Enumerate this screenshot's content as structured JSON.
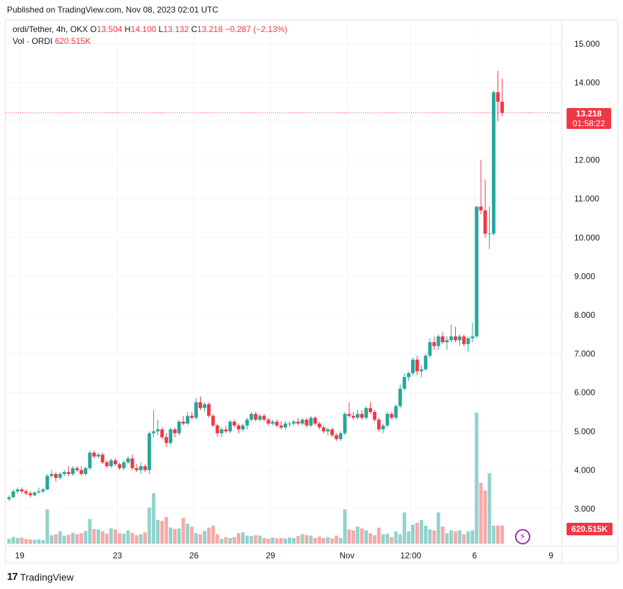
{
  "published": "Published on TradingView.com, Nov 08, 2023 02:01 UTC",
  "legend": {
    "symbol": "ordi/Tether, 4h, OKX",
    "open_label": "O",
    "open": "13.504",
    "high_label": "H",
    "high": "14.100",
    "low_label": "L",
    "low": "13.132",
    "close_label": "C",
    "close": "13.218",
    "change": "−0.287 (−2.13%)",
    "vol_label": "Vol · ORDI",
    "vol_value": "620.515K"
  },
  "price_tag": {
    "price": "13.218",
    "countdown": "01:58:22"
  },
  "volume_tag": "620.515K",
  "brand": {
    "name": "TradingView",
    "logo_text": "17"
  },
  "icons": {
    "alert": "lightning-bolt-icon"
  },
  "colors": {
    "up": "#26a69a",
    "down": "#f23645",
    "up_vol": "#92d2cc",
    "down_vol": "#f7a9a7"
  },
  "chart_data": {
    "type": "candlestick",
    "y_ticks": [
      "3.000",
      "4.000",
      "5.000",
      "6.000",
      "7.000",
      "8.000",
      "9.000",
      "10.000",
      "11.000",
      "12.000",
      "13.000",
      "14.000",
      "15.000"
    ],
    "x_ticks": [
      "19",
      "23",
      "26",
      "29",
      "Nov",
      "12:00",
      "6",
      "9"
    ],
    "ylim": [
      2.4,
      15.5
    ],
    "last_price": 13.218,
    "grid": true,
    "candles": [
      [
        3.25,
        3.35,
        3.2,
        3.3
      ],
      [
        3.3,
        3.5,
        3.28,
        3.45
      ],
      [
        3.45,
        3.55,
        3.4,
        3.5
      ],
      [
        3.5,
        3.55,
        3.4,
        3.45
      ],
      [
        3.45,
        3.5,
        3.35,
        3.4
      ],
      [
        3.4,
        3.45,
        3.3,
        3.35
      ],
      [
        3.35,
        3.45,
        3.32,
        3.42
      ],
      [
        3.42,
        3.55,
        3.4,
        3.45
      ],
      [
        3.45,
        3.55,
        3.4,
        3.5
      ],
      [
        3.5,
        3.9,
        3.48,
        3.85
      ],
      [
        3.85,
        4.0,
        3.8,
        3.9
      ],
      [
        3.9,
        3.95,
        3.7,
        3.8
      ],
      [
        3.8,
        3.95,
        3.75,
        3.9
      ],
      [
        3.9,
        4.0,
        3.85,
        3.95
      ],
      [
        3.95,
        4.1,
        3.85,
        3.9
      ],
      [
        3.9,
        4.1,
        3.85,
        4.05
      ],
      [
        4.05,
        4.1,
        3.95,
        4.0
      ],
      [
        4.0,
        4.1,
        3.85,
        3.9
      ],
      [
        3.9,
        4.1,
        3.85,
        4.05
      ],
      [
        4.05,
        4.5,
        4.0,
        4.45
      ],
      [
        4.45,
        4.5,
        4.3,
        4.35
      ],
      [
        4.35,
        4.45,
        4.3,
        4.4
      ],
      [
        4.4,
        4.45,
        4.15,
        4.2
      ],
      [
        4.2,
        4.25,
        4.05,
        4.1
      ],
      [
        4.1,
        4.3,
        4.05,
        4.25
      ],
      [
        4.25,
        4.3,
        4.1,
        4.15
      ],
      [
        4.15,
        4.2,
        4.0,
        4.05
      ],
      [
        4.05,
        4.25,
        4.0,
        4.2
      ],
      [
        4.2,
        4.35,
        4.15,
        4.3
      ],
      [
        4.3,
        4.4,
        4.0,
        4.05
      ],
      [
        4.05,
        4.15,
        3.95,
        4.0
      ],
      [
        4.0,
        4.2,
        3.9,
        4.1
      ],
      [
        4.1,
        4.15,
        3.95,
        4.0
      ],
      [
        4.0,
        5.0,
        3.9,
        4.95
      ],
      [
        4.95,
        5.55,
        4.85,
        5.0
      ],
      [
        5.0,
        5.3,
        4.9,
        5.05
      ],
      [
        5.05,
        5.1,
        4.8,
        4.85
      ],
      [
        4.85,
        4.95,
        4.6,
        4.7
      ],
      [
        4.7,
        5.1,
        4.65,
        5.05
      ],
      [
        5.05,
        5.1,
        4.85,
        4.95
      ],
      [
        4.95,
        5.3,
        4.9,
        5.25
      ],
      [
        5.25,
        5.4,
        5.15,
        5.2
      ],
      [
        5.2,
        5.5,
        5.15,
        5.4
      ],
      [
        5.4,
        5.5,
        5.3,
        5.35
      ],
      [
        5.35,
        5.85,
        5.3,
        5.75
      ],
      [
        5.75,
        5.9,
        5.55,
        5.6
      ],
      [
        5.6,
        5.75,
        5.5,
        5.7
      ],
      [
        5.7,
        5.75,
        5.35,
        5.4
      ],
      [
        5.4,
        5.45,
        5.1,
        5.15
      ],
      [
        5.15,
        5.2,
        4.85,
        4.95
      ],
      [
        4.95,
        5.1,
        4.85,
        5.05
      ],
      [
        5.05,
        5.15,
        4.95,
        5.0
      ],
      [
        5.0,
        5.3,
        4.95,
        5.25
      ],
      [
        5.25,
        5.3,
        5.1,
        5.15
      ],
      [
        5.15,
        5.2,
        4.95,
        5.05
      ],
      [
        5.05,
        5.2,
        5.0,
        5.15
      ],
      [
        5.15,
        5.35,
        5.05,
        5.3
      ],
      [
        5.3,
        5.5,
        5.25,
        5.45
      ],
      [
        5.45,
        5.5,
        5.25,
        5.3
      ],
      [
        5.3,
        5.45,
        5.25,
        5.4
      ],
      [
        5.4,
        5.45,
        5.25,
        5.3
      ],
      [
        5.3,
        5.35,
        5.15,
        5.2
      ],
      [
        5.2,
        5.3,
        5.15,
        5.25
      ],
      [
        5.25,
        5.3,
        5.1,
        5.15
      ],
      [
        5.15,
        5.25,
        5.05,
        5.1
      ],
      [
        5.1,
        5.25,
        5.05,
        5.2
      ],
      [
        5.2,
        5.25,
        5.1,
        5.2
      ],
      [
        5.2,
        5.3,
        5.15,
        5.25
      ],
      [
        5.25,
        5.35,
        5.15,
        5.2
      ],
      [
        5.2,
        5.35,
        5.15,
        5.3
      ],
      [
        5.3,
        5.35,
        5.1,
        5.15
      ],
      [
        5.15,
        5.4,
        5.1,
        5.35
      ],
      [
        5.35,
        5.4,
        5.15,
        5.2
      ],
      [
        5.2,
        5.25,
        5.05,
        5.1
      ],
      [
        5.1,
        5.15,
        4.95,
        5.0
      ],
      [
        5.0,
        5.1,
        4.9,
        5.05
      ],
      [
        5.05,
        5.1,
        4.85,
        4.9
      ],
      [
        4.9,
        4.95,
        4.75,
        4.8
      ],
      [
        4.8,
        5.0,
        4.75,
        4.95
      ],
      [
        4.95,
        5.5,
        4.9,
        5.45
      ],
      [
        5.45,
        5.75,
        5.35,
        5.4
      ],
      [
        5.4,
        5.5,
        5.3,
        5.35
      ],
      [
        5.35,
        5.55,
        5.3,
        5.45
      ],
      [
        5.45,
        5.55,
        5.3,
        5.35
      ],
      [
        5.35,
        5.65,
        5.3,
        5.6
      ],
      [
        5.6,
        5.75,
        5.45,
        5.5
      ],
      [
        5.5,
        5.55,
        5.25,
        5.3
      ],
      [
        5.3,
        5.35,
        5.0,
        5.05
      ],
      [
        5.05,
        5.2,
        4.95,
        5.15
      ],
      [
        5.15,
        5.5,
        5.1,
        5.45
      ],
      [
        5.45,
        5.5,
        5.3,
        5.35
      ],
      [
        5.35,
        5.7,
        5.3,
        5.65
      ],
      [
        5.65,
        6.2,
        5.6,
        6.1
      ],
      [
        6.1,
        6.5,
        6.05,
        6.4
      ],
      [
        6.4,
        6.55,
        6.3,
        6.5
      ],
      [
        6.5,
        6.9,
        6.45,
        6.85
      ],
      [
        6.85,
        6.95,
        6.45,
        6.55
      ],
      [
        6.55,
        6.7,
        6.4,
        6.6
      ],
      [
        6.6,
        7.0,
        6.55,
        6.95
      ],
      [
        6.95,
        7.4,
        6.9,
        7.3
      ],
      [
        7.3,
        7.45,
        7.1,
        7.2
      ],
      [
        7.2,
        7.5,
        7.1,
        7.45
      ],
      [
        7.45,
        7.55,
        7.25,
        7.3
      ],
      [
        7.3,
        7.45,
        7.1,
        7.35
      ],
      [
        7.35,
        7.75,
        7.3,
        7.45
      ],
      [
        7.45,
        7.7,
        7.3,
        7.35
      ],
      [
        7.35,
        7.5,
        7.2,
        7.45
      ],
      [
        7.45,
        7.5,
        7.2,
        7.25
      ],
      [
        7.25,
        7.45,
        7.05,
        7.4
      ],
      [
        7.4,
        7.8,
        7.3,
        7.45
      ],
      [
        7.45,
        10.8,
        7.4,
        10.8
      ],
      [
        10.8,
        12.0,
        10.6,
        10.7
      ],
      [
        10.7,
        11.5,
        10.0,
        10.1
      ],
      [
        10.1,
        10.8,
        9.7,
        10.1
      ],
      [
        10.1,
        13.8,
        10.05,
        13.75
      ],
      [
        13.75,
        14.3,
        13.0,
        13.504
      ],
      [
        13.504,
        14.1,
        13.132,
        13.218
      ]
    ],
    "volumes": [
      0.1,
      0.14,
      0.12,
      0.13,
      0.1,
      0.09,
      0.08,
      0.09,
      0.08,
      0.72,
      0.18,
      0.2,
      0.26,
      0.17,
      0.19,
      0.23,
      0.2,
      0.22,
      0.27,
      0.52,
      0.31,
      0.3,
      0.26,
      0.21,
      0.32,
      0.3,
      0.22,
      0.21,
      0.28,
      0.23,
      0.18,
      0.2,
      0.24,
      0.76,
      1.06,
      0.5,
      0.48,
      0.56,
      0.34,
      0.31,
      0.32,
      0.54,
      0.42,
      0.36,
      0.22,
      0.2,
      0.27,
      0.34,
      0.38,
      0.2,
      0.1,
      0.14,
      0.12,
      0.14,
      0.22,
      0.24,
      0.17,
      0.16,
      0.18,
      0.17,
      0.12,
      0.1,
      0.13,
      0.11,
      0.12,
      0.11,
      0.13,
      0.12,
      0.16,
      0.2,
      0.18,
      0.17,
      0.12,
      0.15,
      0.12,
      0.14,
      0.11,
      0.17,
      0.12,
      0.72,
      0.3,
      0.28,
      0.36,
      0.32,
      0.28,
      0.22,
      0.18,
      0.34,
      0.2,
      0.21,
      0.14,
      0.26,
      0.2,
      0.66,
      0.26,
      0.4,
      0.44,
      0.5,
      0.38,
      0.3,
      0.28,
      0.66,
      0.36,
      0.22,
      0.28,
      0.26,
      0.28,
      0.2,
      0.26,
      0.28,
      2.76,
      1.28,
      1.12,
      1.48,
      0.38,
      0.38,
      0.38
    ],
    "vol_max": 2.76
  }
}
